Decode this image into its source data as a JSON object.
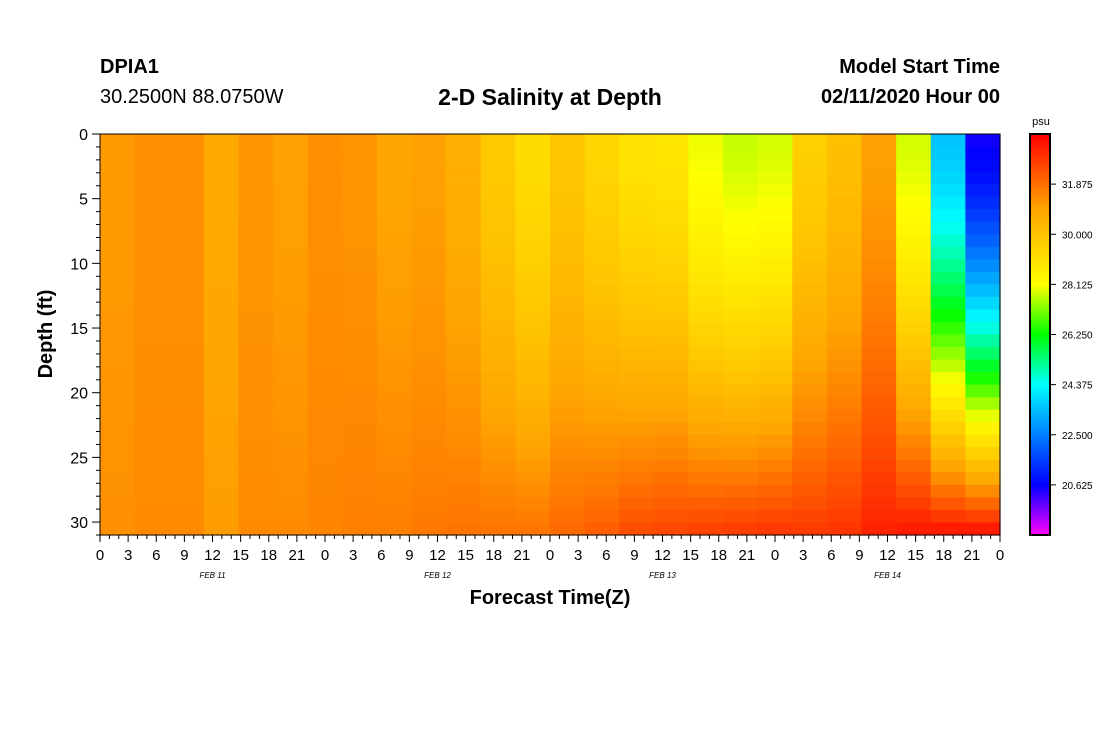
{
  "header": {
    "station": "DPIA1",
    "coordinates": "30.2500N 88.0750W",
    "title": "2-D Salinity at Depth",
    "model_start_label": "Model Start Time",
    "model_start_value": "02/11/2020 Hour 00"
  },
  "chart_data": {
    "type": "heatmap",
    "title": "2-D Salinity at Depth",
    "xlabel": "Forecast Time(Z)",
    "ylabel": "Depth (ft)",
    "x_tick_labels": [
      "0",
      "3",
      "6",
      "9",
      "12",
      "15",
      "18",
      "21",
      "0",
      "3",
      "6",
      "9",
      "12",
      "15",
      "18",
      "21",
      "0",
      "3",
      "6",
      "9",
      "12",
      "15",
      "18",
      "21",
      "0",
      "3",
      "6",
      "9",
      "12",
      "15",
      "18",
      "21",
      "0"
    ],
    "date_labels": [
      "FEB 11",
      "FEB 12",
      "FEB 13",
      "FEB 14"
    ],
    "x_range_hours": [
      0,
      96
    ],
    "y_ticks": [
      0,
      5,
      10,
      15,
      20,
      25,
      30
    ],
    "y_range": [
      0,
      31
    ],
    "y_inverted": true,
    "colorbar": {
      "label": "psu",
      "range": [
        18.75,
        33.75
      ],
      "tick_values": [
        20.625,
        22.5,
        24.375,
        26.25,
        28.125,
        30.0,
        31.875
      ],
      "tick_labels": [
        "20.625",
        "22.500",
        "24.375",
        "26.250",
        "28.125",
        "30.000",
        "31.875"
      ],
      "colors": [
        "#ff00ff",
        "#0000ff",
        "#00ffff",
        "#00ff00",
        "#ffff00",
        "#ffa500",
        "#ff0000"
      ]
    },
    "surface_salinity_psu": [
      31.1,
      31.3,
      31.3,
      30.8,
      31.2,
      31.0,
      31.3,
      31.2,
      30.9,
      31.0,
      30.6,
      29.8,
      29.2,
      29.9,
      29.4,
      29.0,
      28.9,
      28.0,
      27.7,
      27.8,
      29.6,
      30.1,
      31.0,
      27.8,
      23.5,
      20.5
    ],
    "bottom_salinity_psu": [
      31.3,
      31.4,
      31.4,
      31.1,
      31.4,
      31.4,
      31.5,
      31.6,
      31.6,
      31.7,
      31.8,
      31.8,
      31.8,
      32.0,
      32.2,
      32.5,
      32.6,
      32.7,
      32.8,
      32.9,
      32.8,
      32.9,
      33.2,
      33.4,
      33.5,
      33.6
    ]
  }
}
